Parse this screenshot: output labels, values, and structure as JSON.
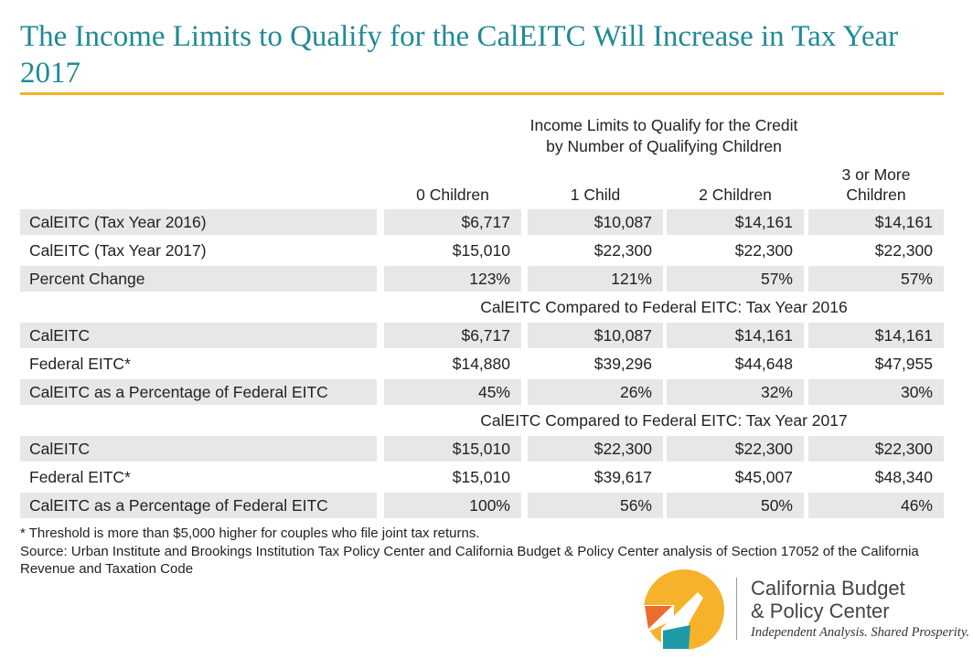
{
  "title": "The Income Limits to Qualify for the CalEITC Will Increase in Tax Year 2017",
  "header": {
    "group_line1": "Income Limits to Qualify for the Credit",
    "group_line2": "by Number of Qualifying Children",
    "columns": [
      {
        "line1": "",
        "line2": "0 Children"
      },
      {
        "line1": "",
        "line2": "1 Child"
      },
      {
        "line1": "",
        "line2": "2 Children"
      },
      {
        "line1": "3 or More",
        "line2": "Children"
      }
    ]
  },
  "sections": [
    {
      "heading": "",
      "rows": [
        {
          "label": "CalEITC (Tax Year 2016)",
          "values": [
            "$6,717",
            "$10,087",
            "$14,161",
            "$14,161"
          ]
        },
        {
          "label": "CalEITC (Tax Year 2017)",
          "values": [
            "$15,010",
            "$22,300",
            "$22,300",
            "$22,300"
          ]
        },
        {
          "label": "Percent Change",
          "values": [
            "123%",
            "121%",
            "57%",
            "57%"
          ]
        }
      ]
    },
    {
      "heading": "CalEITC Compared to Federal EITC: Tax Year 2016",
      "rows": [
        {
          "label": "CalEITC",
          "values": [
            "$6,717",
            "$10,087",
            "$14,161",
            "$14,161"
          ]
        },
        {
          "label": "Federal EITC*",
          "values": [
            "$14,880",
            "$39,296",
            "$44,648",
            "$47,955"
          ]
        },
        {
          "label": "CalEITC as a Percentage of Federal EITC",
          "values": [
            "45%",
            "26%",
            "32%",
            "30%"
          ]
        }
      ]
    },
    {
      "heading": "CalEITC Compared to Federal EITC: Tax Year 2017",
      "rows": [
        {
          "label": "CalEITC",
          "values": [
            "$15,010",
            "$22,300",
            "$22,300",
            "$22,300"
          ]
        },
        {
          "label": "Federal EITC*",
          "values": [
            "$15,010",
            "$39,617",
            "$45,007",
            "$48,340"
          ]
        },
        {
          "label": "CalEITC as a Percentage of Federal EITC",
          "values": [
            "100%",
            "56%",
            "50%",
            "46%"
          ]
        }
      ]
    }
  ],
  "footnote": "* Threshold is more than $5,000 higher for couples who file joint tax returns.",
  "source": "Source: Urban Institute and Brookings Institution Tax Policy Center and California Budget & Policy Center analysis of Section 17052 of the California Revenue and Taxation Code",
  "logo": {
    "name_line1": "California Budget",
    "name_line2": "& Policy Center",
    "tagline": "Independent Analysis. Shared Prosperity.",
    "colors": {
      "yellow": "#f6b22a",
      "orange": "#ec6b2d",
      "teal": "#1e9aa6",
      "title": "#1f8a96",
      "rule": "#f3b224"
    }
  }
}
